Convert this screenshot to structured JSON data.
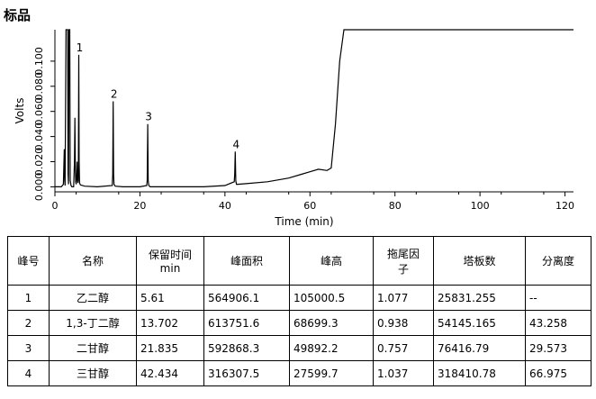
{
  "title": "标品",
  "chart_data": {
    "type": "line",
    "xlabel": "Time (min)",
    "ylabel": "Volts",
    "xlim": [
      0,
      122
    ],
    "ylim": [
      -0.004,
      0.125
    ],
    "xticks": [
      0,
      20,
      40,
      60,
      80,
      100,
      120
    ],
    "yticks": [
      0.0,
      0.02,
      0.04,
      0.06,
      0.08,
      0.1
    ],
    "ytick_labels": [
      "0.000",
      "0.020",
      "0.040",
      "0.060",
      "0.080",
      "0.100"
    ],
    "grid": false,
    "series": [
      {
        "x": [
          0,
          1.5,
          2.0,
          2.2,
          2.3,
          2.4,
          2.6,
          2.8,
          3.0,
          3.1,
          3.2,
          3.3,
          3.4,
          3.5,
          3.6,
          3.8,
          4.0,
          4.4,
          4.6,
          4.7,
          4.8,
          4.9,
          5.0,
          5.1,
          5.2,
          5.3,
          5.4,
          5.5,
          5.61,
          5.7,
          5.8,
          6.0,
          7,
          10,
          13.5,
          13.6,
          13.702,
          13.8,
          13.9,
          14.2,
          16,
          20,
          21.6,
          21.7,
          21.835,
          21.95,
          22.1,
          22.4,
          25,
          30,
          35,
          40,
          42.2,
          42.3,
          42.434,
          42.55,
          42.7,
          43,
          45,
          50,
          55,
          58,
          60,
          62,
          64,
          65,
          66,
          67,
          68,
          68.5,
          70,
          80,
          90,
          100,
          110,
          120,
          122
        ],
        "y": [
          0.0,
          0.0,
          0.002,
          0.03,
          0.005,
          0.001,
          0.13,
          0.13,
          0.13,
          0.01,
          0.002,
          0.13,
          0.13,
          0.13,
          0.005,
          0.001,
          0.0,
          0.0,
          0.02,
          0.055,
          0.015,
          0.004,
          0.002,
          0.008,
          0.02,
          0.006,
          0.003,
          0.005,
          0.105,
          0.02,
          0.003,
          0.0015,
          0.0005,
          0.0,
          0.001,
          0.01,
          0.068,
          0.01,
          0.002,
          0.0005,
          0.0,
          0.0,
          0.001,
          0.005,
          0.05,
          0.005,
          0.001,
          0.0,
          0.0,
          0.0,
          0.0,
          0.001,
          0.004,
          0.01,
          0.028,
          0.005,
          0.002,
          0.002,
          0.0025,
          0.004,
          0.007,
          0.01,
          0.012,
          0.014,
          0.013,
          0.015,
          0.05,
          0.1,
          0.13,
          0.13,
          0.13,
          0.13,
          0.13,
          0.13,
          0.13,
          0.13,
          0.13
        ]
      }
    ],
    "annotations": [
      {
        "label": "1",
        "x": 5.61,
        "y": 0.105
      },
      {
        "label": "2",
        "x": 13.702,
        "y": 0.068
      },
      {
        "label": "3",
        "x": 21.835,
        "y": 0.05
      },
      {
        "label": "4",
        "x": 42.434,
        "y": 0.028
      }
    ]
  },
  "table": {
    "headers": [
      [
        "峰号"
      ],
      [
        "名称"
      ],
      [
        "保留时间",
        "min"
      ],
      [
        "峰面积"
      ],
      [
        "峰高"
      ],
      [
        "拖尾因",
        "子"
      ],
      [
        "塔板数"
      ],
      [
        "分离度"
      ]
    ],
    "rows": [
      [
        "1",
        "乙二醇",
        "5.61",
        "564906.1",
        "105000.5",
        "1.077",
        "25831.255",
        "--"
      ],
      [
        "2",
        "1,3-丁二醇",
        "13.702",
        "613751.6",
        "68699.3",
        "0.938",
        "54145.165",
        "43.258"
      ],
      [
        "3",
        "二甘醇",
        "21.835",
        "592868.3",
        "49892.2",
        "0.757",
        "76416.79",
        "29.573"
      ],
      [
        "4",
        "三甘醇",
        "42.434",
        "316307.5",
        "27599.7",
        "1.037",
        "318410.78",
        "66.975"
      ]
    ]
  }
}
